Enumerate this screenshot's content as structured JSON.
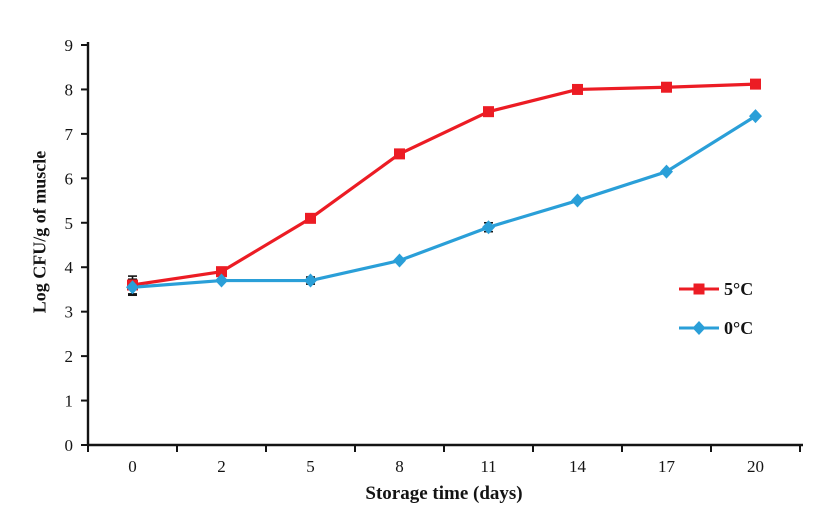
{
  "chart_data": {
    "type": "line",
    "title": "",
    "xlabel": "Storage time (days)",
    "ylabel": "Log CFU/g of muscle",
    "categories": [
      0,
      2,
      5,
      8,
      11,
      14,
      17,
      20
    ],
    "x_tick_labels": [
      "0",
      "2",
      "5",
      "8",
      "11",
      "14",
      "17",
      "20"
    ],
    "y_ticks": [
      0,
      1,
      2,
      3,
      4,
      5,
      6,
      7,
      8,
      9
    ],
    "ylim": [
      0,
      9
    ],
    "grid": false,
    "legend_position": "right-middle",
    "series": [
      {
        "name": "5°C",
        "marker": "square",
        "color": "#ec1c24",
        "values": [
          3.6,
          3.9,
          5.1,
          6.55,
          7.5,
          8.0,
          8.05,
          8.12
        ]
      },
      {
        "name": "0°C",
        "marker": "diamond",
        "color": "#2a9fd8",
        "values": [
          3.55,
          3.7,
          3.7,
          4.15,
          4.9,
          5.5,
          6.15,
          7.4
        ]
      }
    ],
    "error_bars": [
      {
        "series": "5°C",
        "x": 0,
        "y": 3.6,
        "plus_minus": 0.2
      },
      {
        "series": "0°C",
        "x": 0,
        "y": 3.55,
        "plus_minus": 0.18
      },
      {
        "series": "0°C",
        "x": 5,
        "y": 3.7,
        "plus_minus": 0.08
      },
      {
        "series": "0°C",
        "x": 11,
        "y": 4.9,
        "plus_minus": 0.1
      },
      {
        "series": "5°C",
        "x": 14,
        "y": 8.0,
        "plus_minus": 0.08
      }
    ],
    "colors": {
      "axis": "#141414",
      "background": "#ffffff",
      "error_bar": "#141414"
    }
  }
}
